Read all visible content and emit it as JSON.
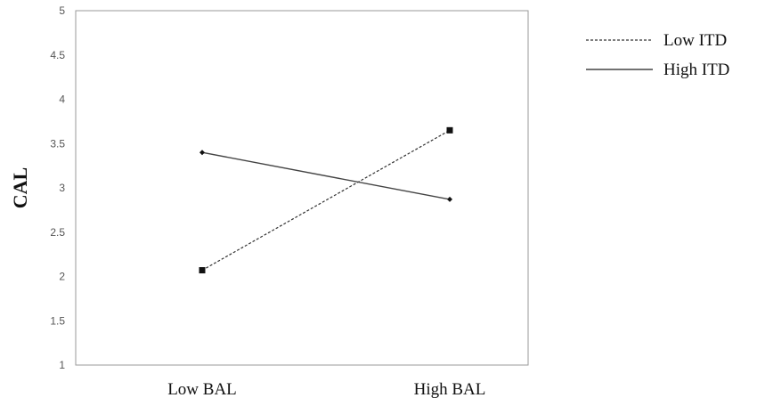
{
  "chart_data": {
    "type": "line",
    "title": "",
    "xlabel": "",
    "ylabel": "CAL",
    "categories": [
      "Low BAL",
      "High BAL"
    ],
    "ylim": [
      1,
      5
    ],
    "yticks": [
      "1",
      "1.5",
      "2",
      "2.5",
      "3",
      "3.5",
      "4",
      "4.5",
      "5"
    ],
    "grid": false,
    "legend": "right",
    "series": [
      {
        "name": "Low ITD",
        "values": [
          2.07,
          3.65
        ],
        "line": "dashed",
        "marker": "square",
        "color": "#333333"
      },
      {
        "name": "High ITD",
        "values": [
          3.4,
          2.87
        ],
        "line": "solid",
        "marker": "diamond",
        "color": "#444444"
      }
    ]
  }
}
